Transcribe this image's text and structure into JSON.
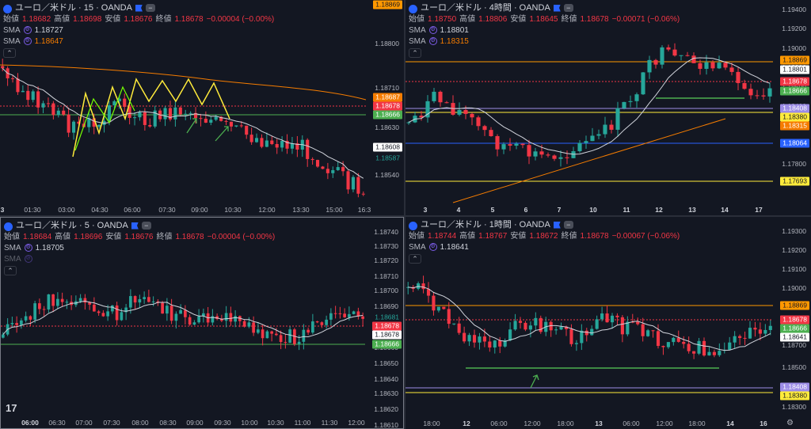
{
  "colors": {
    "up": "#26a69a",
    "down": "#f23645",
    "bg": "#131722",
    "sma_white": "#d1d4dc",
    "sma_orange": "#f57c00",
    "green_line": "#4caf50",
    "orange_line": "#ff9800",
    "yellow_line": "#ffeb3b",
    "purple_line": "#9c8ce6",
    "blue_line": "#2962ff"
  },
  "panes": {
    "tl": {
      "title": "ユーロ／米ドル · 15 · OANDA",
      "ohlc": {
        "open_label": "始値",
        "open": "1.18682",
        "high_label": "高値",
        "high": "1.18698",
        "low_label": "安値",
        "low": "1.18676",
        "close_label": "終値",
        "close": "1.18678",
        "change": "−0.00004 (−0.00%)"
      },
      "sma": [
        {
          "label": "SMA",
          "value": "1.18727"
        },
        {
          "label": "SMA",
          "value": "1.18647"
        }
      ],
      "y_ticks": [
        "1.18800",
        "1.18710",
        "1.18630",
        "1.18540"
      ],
      "top_price": "1.18869",
      "price_labels": [
        {
          "v": "1.18687",
          "bg": "#f57c00",
          "fg": "#ffffff"
        },
        {
          "v": "1.18678",
          "bg": "#f23645",
          "fg": "#ffffff"
        },
        {
          "v": "1.18666",
          "bg": "#4caf50",
          "fg": "#ffffff"
        },
        {
          "v": "1.18608",
          "bg": "#ffffff",
          "fg": "#131722"
        },
        {
          "v": "1.18587",
          "bg": "#131722",
          "fg": "#26a69a"
        }
      ],
      "x_ticks": [
        "3",
        "01:30",
        "03:00",
        "04:30",
        "06:00",
        "07:30",
        "09:00",
        "10:30",
        "12:00",
        "13:30",
        "15:00",
        "16:3"
      ]
    },
    "tr": {
      "title": "ユーロ／米ドル · 4時間 · OANDA",
      "ohlc": {
        "open_label": "始値",
        "open": "1.18750",
        "high_label": "高値",
        "high": "1.18806",
        "low_label": "安値",
        "low": "1.18645",
        "close_label": "終値",
        "close": "1.18678",
        "change": "−0.00071 (−0.06%)"
      },
      "sma": [
        {
          "label": "SMA",
          "value": "1.18801"
        },
        {
          "label": "SMA",
          "value": "1.18315"
        }
      ],
      "y_ticks": [
        "1.19400",
        "1.19200",
        "1.19000",
        "1.18800",
        "1.18600",
        "1.18400",
        "1.18200",
        "1.18000",
        "1.17800",
        "1.17600"
      ],
      "price_labels": [
        {
          "v": "1.18869",
          "bg": "#ff9800",
          "fg": "#131722"
        },
        {
          "v": "1.18801",
          "bg": "#ffffff",
          "fg": "#131722"
        },
        {
          "v": "1.18678",
          "bg": "#f23645",
          "fg": "#ffffff"
        },
        {
          "v": "1.18666",
          "bg": "#4caf50",
          "fg": "#ffffff"
        },
        {
          "v": "1.18408",
          "bg": "#9c8ce6",
          "fg": "#ffffff"
        },
        {
          "v": "1.18380",
          "bg": "#ffeb3b",
          "fg": "#131722"
        },
        {
          "v": "1.18315",
          "bg": "#f57c00",
          "fg": "#ffffff"
        },
        {
          "v": "1.18064",
          "bg": "#2962ff",
          "fg": "#ffffff"
        },
        {
          "v": "1.17693",
          "bg": "#ffeb3b",
          "fg": "#131722"
        }
      ],
      "x_ticks": [
        "3",
        "4",
        "5",
        "6",
        "7",
        "10",
        "11",
        "12",
        "13",
        "14",
        "17"
      ]
    },
    "bl": {
      "title": "ユーロ／米ドル · 5 · OANDA",
      "ohlc": {
        "open_label": "始値",
        "open": "1.18684",
        "high_label": "高値",
        "high": "1.18696",
        "low_label": "安値",
        "low": "1.18676",
        "close_label": "終値",
        "close": "1.18678",
        "change": "−0.00004 (−0.00%)"
      },
      "sma": [
        {
          "label": "SMA",
          "value": "1.18705"
        },
        {
          "label": "SMA",
          "value": ""
        }
      ],
      "y_ticks": [
        "1.18740",
        "1.18730",
        "1.18720",
        "1.18710",
        "1.18700",
        "1.18690",
        "1.18660",
        "1.18650",
        "1.18640",
        "1.18630",
        "1.18620",
        "1.18610"
      ],
      "price_labels": [
        {
          "v": "1.18681",
          "bg": "#131722",
          "fg": "#26a69a"
        },
        {
          "v": "1.18678",
          "bg": "#f23645",
          "fg": "#ffffff"
        },
        {
          "v": "1.18678",
          "bg": "#ffffff",
          "fg": "#131722"
        },
        {
          "v": "1.18666",
          "bg": "#4caf50",
          "fg": "#ffffff"
        }
      ],
      "x_ticks": [
        "06:00",
        "06:30",
        "07:00",
        "07:30",
        "08:00",
        "08:30",
        "09:00",
        "09:30",
        "10:00",
        "10:30",
        "11:00",
        "11:30",
        "12:00"
      ],
      "tv_logo": "17"
    },
    "br": {
      "title": "ユーロ／米ドル · 1時間 · OANDA",
      "ohlc": {
        "open_label": "始値",
        "open": "1.18744",
        "high_label": "高値",
        "high": "1.18767",
        "low_label": "安値",
        "low": "1.18672",
        "close_label": "終値",
        "close": "1.18678",
        "change": "−0.00067 (−0.06%)"
      },
      "sma": [
        {
          "label": "SMA",
          "value": "1.18641"
        }
      ],
      "y_ticks": [
        "1.19300",
        "1.19200",
        "1.19100",
        "1.19000",
        "1.18900",
        "1.18800",
        "1.18700",
        "1.18500",
        "1.18300"
      ],
      "price_labels": [
        {
          "v": "1.18869",
          "bg": "#ff9800",
          "fg": "#131722"
        },
        {
          "v": "1.18678",
          "bg": "#f23645",
          "fg": "#ffffff"
        },
        {
          "v": "1.18666",
          "bg": "#4caf50",
          "fg": "#ffffff"
        },
        {
          "v": "1.18641",
          "bg": "#ffffff",
          "fg": "#131722"
        },
        {
          "v": "1.18408",
          "bg": "#9c8ce6",
          "fg": "#ffffff"
        },
        {
          "v": "1.18380",
          "bg": "#ffeb3b",
          "fg": "#131722"
        }
      ],
      "x_ticks": [
        "18:00",
        "12",
        "06:00",
        "12:00",
        "18:00",
        "13",
        "06:00",
        "12:00",
        "18:00",
        "14",
        "16"
      ]
    }
  }
}
